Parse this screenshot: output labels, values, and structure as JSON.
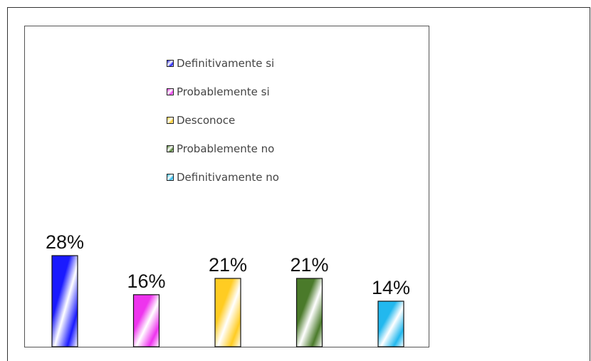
{
  "chart_data": {
    "type": "bar",
    "categories": [
      "Definitivamente si",
      "Probablemente si",
      "Desconoce",
      "Probablemente no",
      "Definitivamente no"
    ],
    "values": [
      28,
      16,
      21,
      21,
      14
    ],
    "value_labels": [
      "28%",
      "16%",
      "21%",
      "21%",
      "14%"
    ],
    "colors": [
      "#1a1aff",
      "#ee33ee",
      "#ffcc22",
      "#4a7a2a",
      "#22b8ee"
    ],
    "ylim": [
      0,
      28
    ],
    "legend_placement": "top-center",
    "grid": false
  }
}
